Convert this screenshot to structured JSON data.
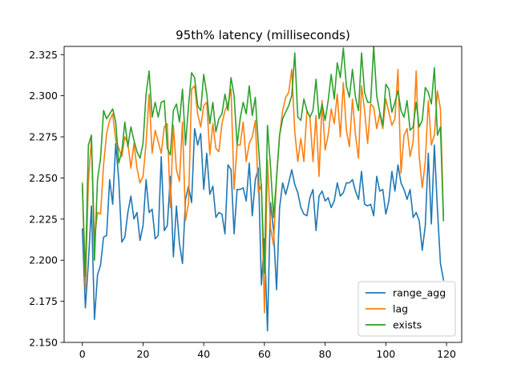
{
  "chart_data": {
    "type": "line",
    "title": "95th% latency (milliseconds)",
    "xlabel": "",
    "ylabel": "",
    "xlim": [
      -6,
      125
    ],
    "ylim": [
      2.15,
      2.33
    ],
    "xticks": [
      0,
      20,
      40,
      60,
      80,
      100,
      120
    ],
    "yticks": [
      2.15,
      2.175,
      2.2,
      2.225,
      2.25,
      2.275,
      2.3,
      2.325
    ],
    "ytick_labels": [
      "2.150",
      "2.175",
      "2.200",
      "2.225",
      "2.250",
      "2.275",
      "2.300",
      "2.325"
    ],
    "grid": false,
    "legend_position": "lower-right",
    "x": [
      0,
      1,
      2,
      3,
      4,
      5,
      6,
      7,
      8,
      9,
      10,
      11,
      12,
      13,
      14,
      15,
      16,
      17,
      18,
      19,
      20,
      21,
      22,
      23,
      24,
      25,
      26,
      27,
      28,
      29,
      30,
      31,
      32,
      33,
      34,
      35,
      36,
      37,
      38,
      39,
      40,
      41,
      42,
      43,
      44,
      45,
      46,
      47,
      48,
      49,
      50,
      51,
      52,
      53,
      54,
      55,
      56,
      57,
      58,
      59,
      60,
      61,
      62,
      63,
      64,
      65,
      66,
      67,
      68,
      69,
      70,
      71,
      72,
      73,
      74,
      75,
      76,
      77,
      78,
      79,
      80,
      81,
      82,
      83,
      84,
      85,
      86,
      87,
      88,
      89,
      90,
      91,
      92,
      93,
      94,
      95,
      96,
      97,
      98,
      99,
      100,
      101,
      102,
      103,
      104,
      105,
      106,
      107,
      108,
      109,
      110,
      111,
      112,
      113,
      114,
      115,
      116,
      117,
      118,
      119
    ],
    "series": [
      {
        "name": "range_agg",
        "color": "#1f77b4",
        "values": [
          2.219,
          2.171,
          2.199,
          2.233,
          2.164,
          2.191,
          2.197,
          2.214,
          2.215,
          2.249,
          2.234,
          2.271,
          2.249,
          2.211,
          2.214,
          2.229,
          2.239,
          2.225,
          2.229,
          2.212,
          2.221,
          2.249,
          2.229,
          2.231,
          2.213,
          2.215,
          2.263,
          2.218,
          2.221,
          2.251,
          2.202,
          2.233,
          2.21,
          2.198,
          2.237,
          2.245,
          2.235,
          2.28,
          2.27,
          2.277,
          2.243,
          2.265,
          2.24,
          2.245,
          2.226,
          2.229,
          2.228,
          2.216,
          2.258,
          2.255,
          2.216,
          2.243,
          2.243,
          2.244,
          2.236,
          2.259,
          2.227,
          2.249,
          2.256,
          2.185,
          2.213,
          2.157,
          2.235,
          2.218,
          2.182,
          2.232,
          2.247,
          2.24,
          2.247,
          2.255,
          2.246,
          2.241,
          2.232,
          2.228,
          2.227,
          2.238,
          2.243,
          2.218,
          2.239,
          2.242,
          2.236,
          2.238,
          2.232,
          2.236,
          2.247,
          2.239,
          2.241,
          2.247,
          2.247,
          2.249,
          2.242,
          2.237,
          2.254,
          2.234,
          2.233,
          2.234,
          2.227,
          2.251,
          2.242,
          2.243,
          2.228,
          2.236,
          2.254,
          2.242,
          2.258,
          2.247,
          2.243,
          2.237,
          2.243,
          2.226,
          2.229,
          2.224,
          2.206,
          2.221,
          2.265,
          2.222,
          2.27,
          2.231,
          2.198,
          2.188
        ]
      },
      {
        "name": "lag",
        "color": "#ff7f0e",
        "values": [
          2.247,
          2.182,
          2.248,
          2.274,
          2.213,
          2.229,
          2.228,
          2.258,
          2.277,
          2.285,
          2.289,
          2.273,
          2.268,
          2.263,
          2.275,
          2.271,
          2.256,
          2.271,
          2.256,
          2.247,
          2.251,
          2.271,
          2.301,
          2.265,
          2.279,
          2.272,
          2.265,
          2.281,
          2.283,
          2.232,
          2.282,
          2.255,
          2.248,
          2.284,
          2.224,
          2.235,
          2.304,
          2.306,
          2.289,
          2.281,
          2.294,
          2.296,
          2.264,
          2.283,
          2.268,
          2.266,
          2.283,
          2.291,
          2.295,
          2.304,
          2.243,
          2.27,
          2.27,
          2.284,
          2.26,
          2.271,
          2.275,
          2.285,
          2.241,
          2.246,
          2.168,
          2.261,
          2.22,
          2.209,
          2.251,
          2.276,
          2.291,
          2.299,
          2.302,
          2.316,
          2.278,
          2.26,
          2.274,
          2.26,
          2.291,
          2.287,
          2.26,
          2.288,
          2.251,
          2.297,
          2.267,
          2.276,
          2.292,
          2.283,
          2.301,
          2.275,
          2.308,
          2.279,
          2.269,
          2.298,
          2.276,
          2.262,
          2.306,
          2.291,
          2.271,
          2.295,
          2.293,
          2.28,
          2.289,
          2.28,
          2.298,
          2.29,
          2.282,
          2.286,
          2.316,
          2.253,
          2.276,
          2.28,
          2.263,
          2.272,
          2.315,
          2.263,
          2.244,
          2.26,
          2.297,
          2.27,
          2.276,
          2.303,
          2.292,
          2.226
        ]
      },
      {
        "name": "exists",
        "color": "#2ca02c",
        "values": [
          2.246,
          2.19,
          2.27,
          2.276,
          2.2,
          2.249,
          2.262,
          2.291,
          2.286,
          2.289,
          2.292,
          2.284,
          2.259,
          2.266,
          2.284,
          2.269,
          2.281,
          2.273,
          2.266,
          2.262,
          2.271,
          2.301,
          2.315,
          2.287,
          2.296,
          2.287,
          2.296,
          2.297,
          2.268,
          2.264,
          2.291,
          2.295,
          2.284,
          2.304,
          2.27,
          2.294,
          2.314,
          2.311,
          2.294,
          2.291,
          2.313,
          2.301,
          2.283,
          2.296,
          2.278,
          2.286,
          2.289,
          2.301,
          2.291,
          2.311,
          2.3,
          2.27,
          2.286,
          2.296,
          2.289,
          2.306,
          2.288,
          2.299,
          2.27,
          2.244,
          2.192,
          2.282,
          2.257,
          2.226,
          2.25,
          2.276,
          2.286,
          2.29,
          2.294,
          2.3,
          2.326,
          2.287,
          2.285,
          2.298,
          2.291,
          2.287,
          2.291,
          2.31,
          2.286,
          2.295,
          2.285,
          2.297,
          2.313,
          2.298,
          2.32,
          2.311,
          2.329,
          2.306,
          2.299,
          2.316,
          2.299,
          2.291,
          2.326,
          2.302,
          2.296,
          2.296,
          2.33,
          2.3,
          2.29,
          2.282,
          2.307,
          2.304,
          2.29,
          2.296,
          2.303,
          2.291,
          2.287,
          2.297,
          2.279,
          2.281,
          2.296,
          2.281,
          2.285,
          2.305,
          2.302,
          2.295,
          2.317,
          2.276,
          2.281,
          2.224
        ]
      }
    ]
  }
}
